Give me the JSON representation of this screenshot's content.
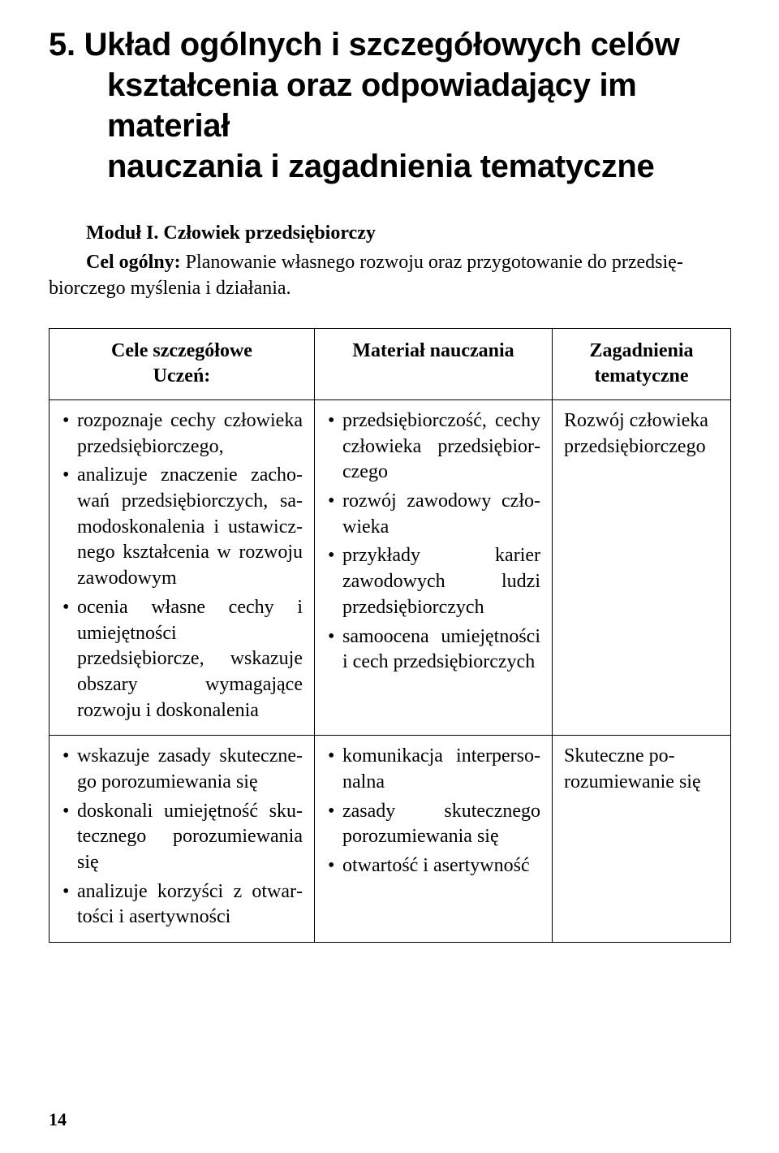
{
  "heading": {
    "line1": "5. Układ ogólnych i szczegółowych celów",
    "line2": "kształcenia oraz odpowiadający im materiał",
    "line3": "nauczania i zagadnienia tematyczne"
  },
  "module": {
    "title": "Moduł I. Człowiek przedsiębiorczy",
    "goal_label": "Cel ogólny: ",
    "goal_text": "Planowanie własnego rozwoju oraz przygotowanie do przedsię­biorczego myślenia i działania."
  },
  "table": {
    "headers": {
      "col1_line1": "Cele szczegółowe",
      "col1_line2": "Uczeń:",
      "col2": "Materiał nauczania",
      "col3_line1": "Zagadnienia",
      "col3_line2": "tematyczne"
    },
    "row1": {
      "c1_b1": "rozpoznaje cechy człowieka przedsiębiorczego,",
      "c1_b2": "analizuje znaczenie zacho­wań przedsiębiorczych, sa­modoskonalenia i ustawicz­nego kształcenia w rozwoju zawodowym",
      "c1_b3": "ocenia własne cechy i umiejętności przedsiębiorcze, wskazuje obszary wymagające rozwoju i doskonalenia",
      "c2_b1": "przedsiębiorczość, cechy człowieka przedsiębior­czego",
      "c2_b2": "rozwój zawodowy czło­wieka",
      "c2_b3": "przykłady karier zawodo­wych ludzi przedsiębior­czych",
      "c2_b4": "samoocena umiejętności i cech przedsiębiorczych",
      "c3": "Rozwój czło­wieka przedsię­biorczego"
    },
    "row2": {
      "c1_b1": "wskazuje zasady skuteczne­go porozumiewania się",
      "c1_b2": "doskonali umiejętność sku­tecznego porozumiewania się",
      "c1_b3": "analizuje korzyści z otwar­tości i asertywności",
      "c2_b1": "komunikacja interperso­nalna",
      "c2_b2": "zasady skutecznego poro­zumiewania się",
      "c2_b3": "otwartość i asertywność",
      "c3": "Skuteczne po­rozumiewanie się"
    }
  },
  "page_number": "14"
}
